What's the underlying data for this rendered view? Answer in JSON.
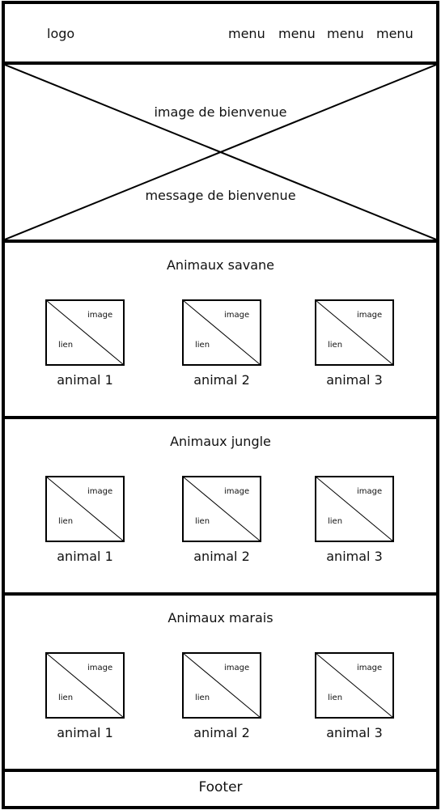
{
  "header": {
    "logo": "logo",
    "menu": [
      "menu",
      "menu",
      "menu",
      "menu"
    ]
  },
  "hero": {
    "image_label": "image de bienvenue",
    "message_label": "message de bienvenue"
  },
  "sections": [
    {
      "title": "Animaux savane",
      "cards": [
        {
          "image_label": "image",
          "link_label": "lien",
          "name": "animal 1"
        },
        {
          "image_label": "image",
          "link_label": "lien",
          "name": "animal 2"
        },
        {
          "image_label": "image",
          "link_label": "lien",
          "name": "animal 3"
        }
      ]
    },
    {
      "title": "Animaux jungle",
      "cards": [
        {
          "image_label": "image",
          "link_label": "lien",
          "name": "animal 1"
        },
        {
          "image_label": "image",
          "link_label": "lien",
          "name": "animal 2"
        },
        {
          "image_label": "image",
          "link_label": "lien",
          "name": "animal 3"
        }
      ]
    },
    {
      "title": "Animaux marais",
      "cards": [
        {
          "image_label": "image",
          "link_label": "lien",
          "name": "animal 1"
        },
        {
          "image_label": "image",
          "link_label": "lien",
          "name": "animal 2"
        },
        {
          "image_label": "image",
          "link_label": "lien",
          "name": "animal 3"
        }
      ]
    }
  ],
  "footer": {
    "label": "Footer"
  }
}
